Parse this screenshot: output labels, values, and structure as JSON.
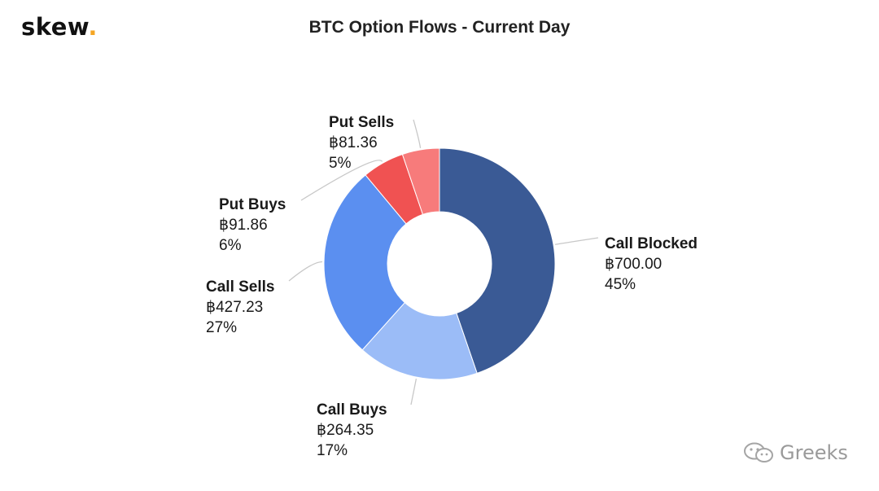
{
  "brand": {
    "logo_text": "skew",
    "logo_dot": "."
  },
  "watermark": {
    "text": "Greeks",
    "icon": "wechat-icon"
  },
  "chart_data": {
    "type": "pie",
    "variant": "donut",
    "title": "BTC Option Flows - Current Day",
    "slices": [
      {
        "name": "Call Blocked",
        "value": 700.0,
        "value_label": "฿700.00",
        "percent_label": "45%",
        "color": "#3a5a95"
      },
      {
        "name": "Call Buys",
        "value": 264.35,
        "value_label": "฿264.35",
        "percent_label": "17%",
        "color": "#9bbcf7"
      },
      {
        "name": "Call Sells",
        "value": 427.23,
        "value_label": "฿427.23",
        "percent_label": "27%",
        "color": "#5b8ff0"
      },
      {
        "name": "Put Buys",
        "value": 91.86,
        "value_label": "฿91.86",
        "percent_label": "6%",
        "color": "#f05252"
      },
      {
        "name": "Put Sells",
        "value": 81.36,
        "value_label": "฿81.36",
        "percent_label": "5%",
        "color": "#f77b7b"
      }
    ]
  }
}
